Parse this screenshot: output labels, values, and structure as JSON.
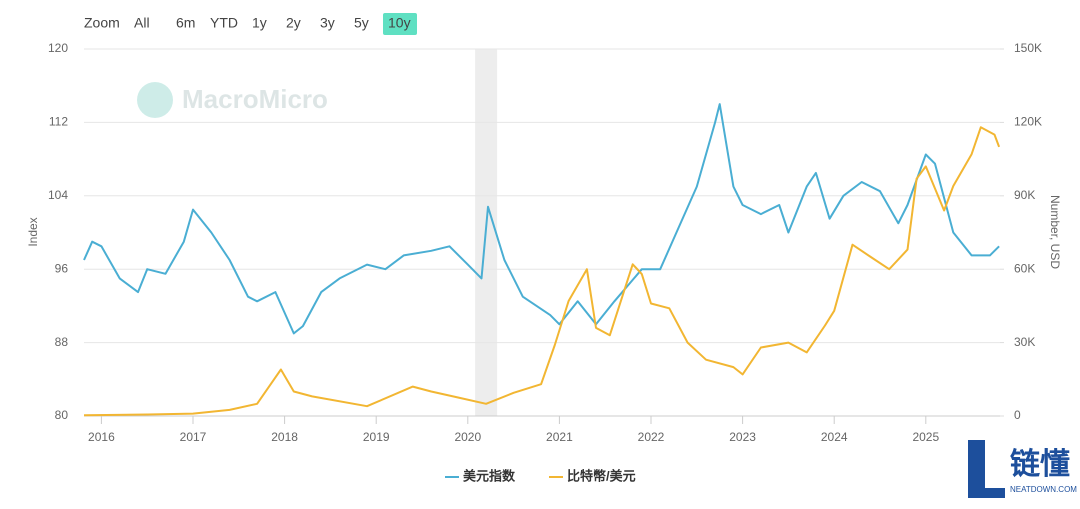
{
  "chart_data": {
    "type": "line",
    "watermark": "MacroMicro",
    "zoom_label": "Zoom",
    "range_buttons": [
      "All",
      "6m",
      "YTD",
      "1y",
      "2y",
      "3y",
      "5y",
      "10y"
    ],
    "selected_button": 7,
    "ylabel": "Index",
    "y2label": "Number, USD",
    "xlim": [
      2015.81,
      2025.81
    ],
    "xticks": [
      {
        "value": 2016,
        "label": "2016"
      },
      {
        "value": 2017,
        "label": "2017"
      },
      {
        "value": 2018,
        "label": "2018"
      },
      {
        "value": 2019,
        "label": "2019"
      },
      {
        "value": 2020,
        "label": "2020"
      },
      {
        "value": 2021,
        "label": "2021"
      },
      {
        "value": 2022,
        "label": "2022"
      },
      {
        "value": 2023,
        "label": "2023"
      },
      {
        "value": 2024,
        "label": "2024"
      },
      {
        "value": 2025,
        "label": "2025"
      }
    ],
    "ylim": [
      80,
      120
    ],
    "yticks": [
      80,
      88,
      96,
      104,
      112,
      120
    ],
    "y2lim": [
      0,
      150000
    ],
    "y2ticks": [
      0,
      {
        "value": 30000,
        "label": "30K"
      },
      {
        "value": 60000,
        "label": "60K"
      },
      {
        "value": 90000,
        "label": "90K"
      },
      {
        "value": 120000,
        "label": "120K"
      },
      {
        "value": 150000,
        "label": "150K"
      }
    ],
    "grid": true,
    "shaded_region": [
      2020.08,
      2020.32
    ],
    "series": [
      {
        "name": "美元指数",
        "color": "#4aaed3",
        "axis": "y",
        "x": [
          2015.81,
          2015.9,
          2016.0,
          2016.2,
          2016.4,
          2016.5,
          2016.7,
          2016.9,
          2017.0,
          2017.2,
          2017.4,
          2017.6,
          2017.7,
          2017.9,
          2018.1,
          2018.2,
          2018.4,
          2018.6,
          2018.9,
          2019.1,
          2019.3,
          2019.6,
          2019.8,
          2020.0,
          2020.15,
          2020.22,
          2020.4,
          2020.6,
          2020.9,
          2021.0,
          2021.2,
          2021.4,
          2021.6,
          2021.9,
          2022.1,
          2022.3,
          2022.5,
          2022.7,
          2022.75,
          2022.9,
          2023.0,
          2023.2,
          2023.4,
          2023.5,
          2023.7,
          2023.8,
          2023.95,
          2024.1,
          2024.3,
          2024.5,
          2024.7,
          2024.8,
          2025.0,
          2025.1,
          2025.3,
          2025.5,
          2025.7,
          2025.8
        ],
        "values": [
          97,
          99,
          98.5,
          95,
          93.5,
          96,
          95.5,
          99,
          102.5,
          100,
          97,
          93,
          92.5,
          93.5,
          89,
          89.8,
          93.5,
          95,
          96.5,
          96,
          97.5,
          98,
          98.5,
          96.5,
          95,
          102.8,
          97,
          93,
          91,
          90,
          92.5,
          90,
          92.5,
          96,
          96,
          100.5,
          105,
          112,
          114,
          105,
          103,
          102,
          103,
          100,
          105,
          106.5,
          101.5,
          104,
          105.5,
          104.5,
          101,
          103,
          108.5,
          107.5,
          100,
          97.5,
          97.5,
          98.5
        ]
      },
      {
        "name": "比特幣/美元",
        "color": "#f2b632",
        "axis": "y2",
        "x": [
          2015.81,
          2016.5,
          2017.0,
          2017.4,
          2017.7,
          2017.96,
          2018.1,
          2018.3,
          2018.9,
          2019.4,
          2019.6,
          2019.9,
          2020.2,
          2020.5,
          2020.8,
          2020.95,
          2021.1,
          2021.3,
          2021.4,
          2021.55,
          2021.8,
          2021.9,
          2022.0,
          2022.2,
          2022.4,
          2022.6,
          2022.9,
          2023.0,
          2023.2,
          2023.5,
          2023.7,
          2023.9,
          2024.0,
          2024.2,
          2024.4,
          2024.6,
          2024.8,
          2024.9,
          2025.0,
          2025.2,
          2025.3,
          2025.5,
          2025.6,
          2025.75,
          2025.8
        ],
        "values": [
          300,
          600,
          1000,
          2500,
          5000,
          19000,
          10000,
          8000,
          4000,
          12000,
          10000,
          7500,
          5000,
          9500,
          13000,
          29000,
          47000,
          60000,
          36000,
          33000,
          62000,
          58000,
          46000,
          44000,
          30000,
          23000,
          20000,
          17000,
          28000,
          30000,
          26000,
          37000,
          43000,
          70000,
          65000,
          60000,
          68000,
          97000,
          102000,
          84000,
          94000,
          107000,
          118000,
          115000,
          110000
        ]
      }
    ],
    "logo_text": "链懂",
    "logo_sub": "NEATDOWN.COM"
  }
}
